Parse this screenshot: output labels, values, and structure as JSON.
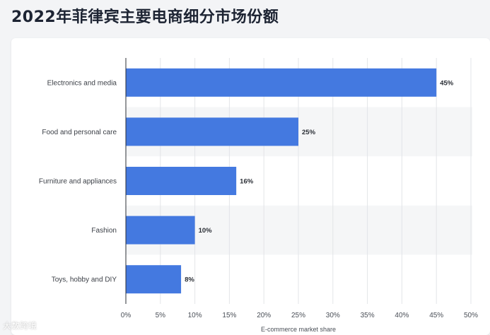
{
  "page": {
    "title": "2022年菲律宾主要电商细分市场份额"
  },
  "chart_data": {
    "type": "bar",
    "orientation": "horizontal",
    "categories": [
      "Electronics and media",
      "Food and personal care",
      "Furniture and appliances",
      "Fashion",
      "Toys, hobby and DIY"
    ],
    "values": [
      45,
      25,
      16,
      10,
      8
    ],
    "value_labels": [
      "45%",
      "25%",
      "16%",
      "10%",
      "8%"
    ],
    "xticks": [
      "0%",
      "5%",
      "10%",
      "15%",
      "20%",
      "25%",
      "30%",
      "35%",
      "40%",
      "45%",
      "50%"
    ],
    "xlim": [
      0,
      50
    ],
    "xlabel": "E-commerce market share",
    "grid": true,
    "bar_color": "#4479e0"
  },
  "watermark": "大数跨境"
}
